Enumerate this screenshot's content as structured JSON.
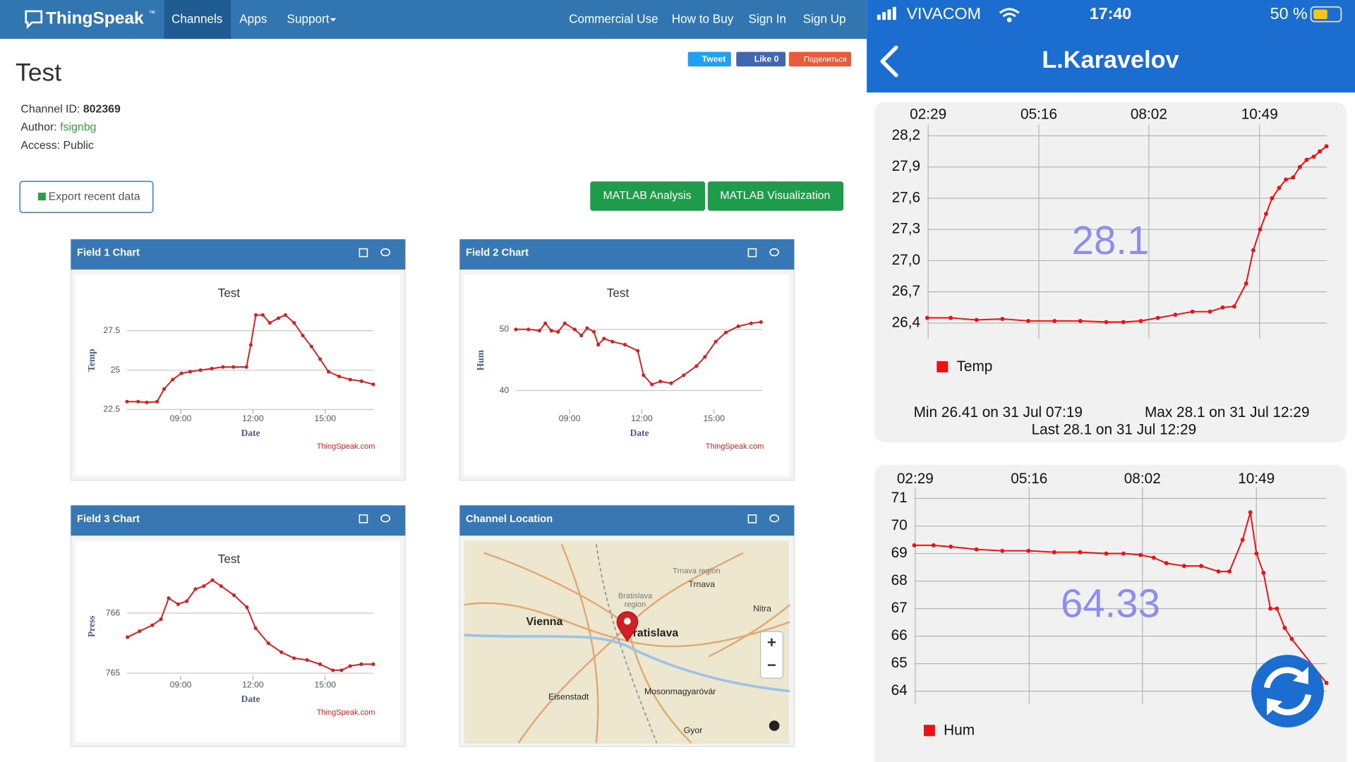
{
  "nav": {
    "brand": "ThingSpeak",
    "brand_mark": "™",
    "left": [
      "Channels",
      "Apps",
      "Support"
    ],
    "right": [
      "Commercial Use",
      "How to Buy",
      "Sign In",
      "Sign Up"
    ]
  },
  "channel": {
    "title": "Test",
    "fields": [
      {
        "label": "Channel ID:",
        "value": "802369"
      },
      {
        "label": "Author:",
        "value": "fsignbg"
      },
      {
        "label": "Access:",
        "value": "Public"
      }
    ]
  },
  "social": [
    "Tweet",
    "Like 0",
    "Поделиться"
  ],
  "export": "Export recent data",
  "matlab": [
    "MATLAB Analysis",
    "MATLAB Visualization"
  ],
  "panels": [
    {
      "title": "Field 1 Chart",
      "chart": {
        "type": "line",
        "title": "Test",
        "ylabel": "Temp",
        "xlabel": "Date",
        "credit": "ThingSpeak.com",
        "color": "#d62020",
        "x": [
          6.77,
          7.23,
          7.59,
          8.02,
          8.31,
          8.67,
          9.03,
          9.39,
          9.82,
          10.29,
          10.76,
          11.19,
          11.73,
          11.91,
          12.12,
          12.41,
          12.7,
          13.06,
          13.35,
          13.71,
          14.07,
          14.43,
          14.79,
          15.14,
          15.58,
          16.04,
          16.51,
          17.0
        ],
        "values": [
          23.0,
          23.0,
          22.95,
          23.0,
          23.8,
          24.4,
          24.8,
          24.9,
          25.0,
          25.1,
          25.2,
          25.2,
          25.2,
          26.6,
          28.5,
          28.5,
          28.0,
          28.3,
          28.5,
          28.0,
          27.2,
          26.5,
          25.7,
          24.9,
          24.6,
          24.4,
          24.3,
          24.1
        ],
        "xlim": [
          6.77,
          17.0
        ],
        "ylim": [
          22.5,
          28.75
        ],
        "xticks": [
          {
            "value": 9,
            "label": "09:00"
          },
          {
            "value": 12,
            "label": "12:00"
          },
          {
            "value": 15,
            "label": "15:00"
          }
        ],
        "yticks": [
          22.5,
          25,
          27.5
        ]
      }
    },
    {
      "title": "Field 2 Chart",
      "chart": {
        "type": "line",
        "title": "Test",
        "ylabel": "Hum",
        "xlabel": "Date",
        "credit": "ThingSpeak.com",
        "color": "#d62020",
        "x": [
          6.77,
          7.29,
          7.75,
          7.99,
          8.24,
          8.52,
          8.8,
          9.21,
          9.49,
          9.73,
          10.01,
          10.19,
          10.43,
          10.78,
          11.3,
          11.83,
          12.07,
          12.42,
          12.77,
          13.22,
          13.74,
          14.27,
          14.62,
          15.07,
          15.49,
          16.01,
          16.54,
          16.95
        ],
        "values": [
          50.0,
          50.0,
          49.8,
          51.0,
          49.8,
          49.6,
          51.0,
          50.0,
          49.0,
          50.2,
          49.6,
          47.5,
          48.5,
          48.0,
          47.5,
          46.5,
          42.5,
          41.0,
          41.5,
          41.2,
          42.5,
          44.0,
          45.5,
          48.0,
          49.5,
          50.5,
          51.0,
          51.2
        ],
        "xlim": [
          6.77,
          17.0
        ],
        "ylim": [
          36.9,
          53
        ],
        "xticks": [
          {
            "value": 9,
            "label": "09:00"
          },
          {
            "value": 12,
            "label": "12:00"
          },
          {
            "value": 15,
            "label": "15:00"
          }
        ],
        "yticks": [
          40,
          50
        ]
      }
    },
    {
      "title": "Field 3 Chart",
      "chart": {
        "type": "line",
        "title": "Test",
        "ylabel": "Press",
        "xlabel": "Date",
        "credit": "ThingSpeak.com",
        "color": "#d62020",
        "x": [
          6.79,
          7.29,
          7.82,
          8.18,
          8.5,
          8.89,
          9.25,
          9.61,
          9.96,
          10.32,
          10.68,
          11.21,
          11.75,
          12.11,
          12.64,
          13.18,
          13.71,
          14.25,
          14.79,
          15.32,
          15.68,
          16.04,
          16.5,
          17.0
        ],
        "values": [
          765.6,
          765.7,
          765.8,
          765.9,
          766.25,
          766.15,
          766.2,
          766.4,
          766.45,
          766.55,
          766.45,
          766.3,
          766.1,
          765.75,
          765.5,
          765.35,
          765.25,
          765.22,
          765.15,
          765.05,
          765.05,
          765.12,
          765.15,
          765.15
        ],
        "xlim": [
          6.77,
          17.0
        ],
        "ylim": [
          764.96,
          766.6
        ],
        "xticks": [
          {
            "value": 9,
            "label": "09:00"
          },
          {
            "value": 12,
            "label": "12:00"
          },
          {
            "value": 15,
            "label": "15:00"
          }
        ],
        "yticks": [
          765,
          766
        ]
      }
    },
    {
      "title": "Channel Location",
      "map": {
        "labels": [
          "Trnava region",
          "Trnava",
          "Bratislava",
          "region",
          "Nitra",
          "Vienna",
          "Bratislava",
          "Eisenstadt",
          "Mosonmagyaróvár",
          "Gyor"
        ],
        "zoom": [
          "+",
          "−"
        ]
      }
    }
  ],
  "phone": {
    "carrier": "VIVACOM",
    "time": "17:40",
    "battery": "50 %",
    "title": "L.Karavelov",
    "charts": [
      {
        "type": "line",
        "name": "Temp",
        "color": "#ee1111",
        "current": "28.1",
        "stats": [
          "Min 26.41 on 31 Jul 07:19",
          "Max 28.1 on 31 Jul 12:29",
          "Last 28.1 on 31 Jul 12:29"
        ],
        "x": [
          2.46,
          3.05,
          3.7,
          4.35,
          5.0,
          5.66,
          6.31,
          6.96,
          7.39,
          7.83,
          8.26,
          8.7,
          9.13,
          9.57,
          9.89,
          10.18,
          10.48,
          10.66,
          10.83,
          10.98,
          11.13,
          11.31,
          11.48,
          11.66,
          11.83,
          12.0,
          12.18,
          12.33,
          12.5
        ],
        "values": [
          26.45,
          26.45,
          26.43,
          26.44,
          26.42,
          26.42,
          26.42,
          26.41,
          26.41,
          26.42,
          26.45,
          26.48,
          26.51,
          26.51,
          26.55,
          26.56,
          26.78,
          27.1,
          27.3,
          27.45,
          27.6,
          27.7,
          27.78,
          27.8,
          27.9,
          27.97,
          28.0,
          28.05,
          28.1
        ],
        "xlim": [
          2.46,
          12.5
        ],
        "ylim": [
          26.25,
          28.26
        ],
        "xticks": [
          {
            "value": 2.483,
            "label": "02:29"
          },
          {
            "value": 5.267,
            "label": "05:16"
          },
          {
            "value": 8.033,
            "label": "08:02"
          },
          {
            "value": 10.817,
            "label": "10:49"
          }
        ],
        "yticks": [
          {
            "value": 26.4,
            "label": "26,4"
          },
          {
            "value": 26.7,
            "label": "26,7"
          },
          {
            "value": 27.0,
            "label": "27,0"
          },
          {
            "value": 27.3,
            "label": "27,3"
          },
          {
            "value": 27.6,
            "label": "27,6"
          },
          {
            "value": 27.9,
            "label": "27,9"
          },
          {
            "value": 28.2,
            "label": "28,2"
          }
        ]
      },
      {
        "type": "line",
        "name": "Hum",
        "color": "#ee1111",
        "current": "64.33",
        "x": [
          2.46,
          2.93,
          3.35,
          3.98,
          4.61,
          5.25,
          5.88,
          6.51,
          7.15,
          7.57,
          7.99,
          8.31,
          8.62,
          9.05,
          9.47,
          9.89,
          10.16,
          10.48,
          10.67,
          10.82,
          10.99,
          11.16,
          11.32,
          11.51,
          11.68,
          12.53
        ],
        "values": [
          69.3,
          69.3,
          69.25,
          69.15,
          69.1,
          69.1,
          69.05,
          69.05,
          69.0,
          69.0,
          68.95,
          68.85,
          68.65,
          68.55,
          68.55,
          68.35,
          68.35,
          69.5,
          70.5,
          69.0,
          68.3,
          67.0,
          67.0,
          66.3,
          65.9,
          64.3
        ],
        "xlim": [
          2.46,
          12.53
        ],
        "ylim": [
          63.53,
          71.22
        ],
        "xticks": [
          {
            "value": 2.483,
            "label": "02:29"
          },
          {
            "value": 5.267,
            "label": "05:16"
          },
          {
            "value": 8.033,
            "label": "08:02"
          },
          {
            "value": 10.817,
            "label": "10:49"
          }
        ],
        "yticks": [
          64,
          65,
          66,
          67,
          68,
          69,
          70,
          71
        ]
      }
    ]
  }
}
